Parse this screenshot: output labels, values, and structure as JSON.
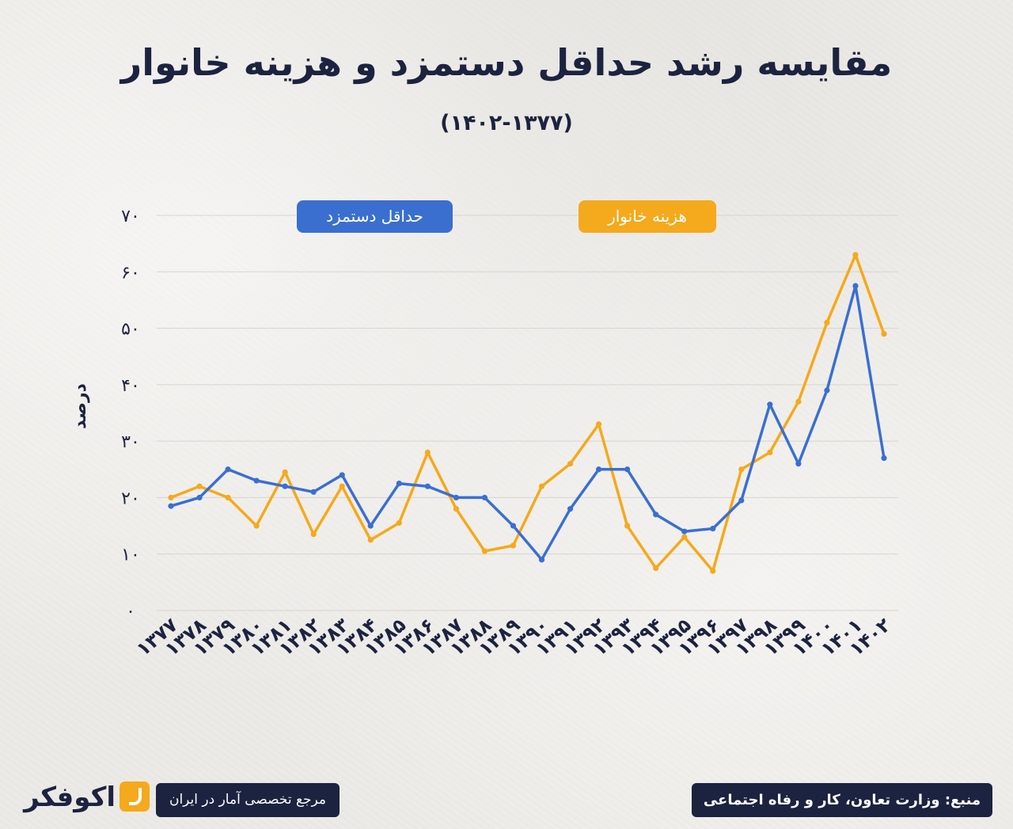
{
  "title": "مقایسه رشد حداقل دستمزد و هزینه خانوار",
  "subtitle": "(۱۴۰۲-۱۳۷۷)",
  "brand": {
    "name": "اکوفکر",
    "tagline": "مرجع تخصصی آمار در ایران"
  },
  "source": "منبع: وزارت تعاون، کار و رفاه اجتماعی",
  "colors": {
    "wage": "#3a6fd0",
    "cost": "#f5a91c",
    "navy": "#1c2340",
    "grid": "#d6d4cf"
  },
  "chart_data": {
    "type": "line",
    "ylabel": "درصد",
    "ylim": [
      0,
      70
    ],
    "yticks": [
      "۰",
      "۱۰",
      "۲۰",
      "۳۰",
      "۴۰",
      "۵۰",
      "۶۰",
      "۷۰"
    ],
    "categories": [
      "۱۳۷۷",
      "۱۳۷۸",
      "۱۳۷۹",
      "۱۳۸۰",
      "۱۳۸۱",
      "۱۳۸۲",
      "۱۳۸۳",
      "۱۳۸۴",
      "۱۳۸۵",
      "۱۳۸۶",
      "۱۳۸۷",
      "۱۳۸۸",
      "۱۳۸۹",
      "۱۳۹۰",
      "۱۳۹۱",
      "۱۳۹۲",
      "۱۳۹۳",
      "۱۳۹۴",
      "۱۳۹۵",
      "۱۳۹۶",
      "۱۳۹۷",
      "۱۳۹۸",
      "۱۳۹۹",
      "۱۴۰۰",
      "۱۴۰۱",
      "۱۴۰۲"
    ],
    "grid": true,
    "legend_position": "top",
    "series": [
      {
        "name": "حداقل دستمزد",
        "color": "#3a6fd0",
        "values": [
          18.5,
          20,
          25,
          23,
          22,
          21,
          24,
          15,
          22.5,
          22,
          20,
          20,
          15,
          9,
          18,
          25,
          25,
          17,
          14,
          14.5,
          19.5,
          36.5,
          26,
          39,
          57.5,
          27
        ]
      },
      {
        "name": "هزینه خانوار",
        "color": "#f5a91c",
        "values": [
          20,
          22,
          20,
          15,
          24.5,
          13.5,
          22,
          12.5,
          15.5,
          28,
          18,
          10.5,
          11.5,
          22,
          26,
          33,
          15,
          7.5,
          13,
          7,
          25,
          28,
          37,
          51,
          63,
          49
        ]
      }
    ]
  }
}
